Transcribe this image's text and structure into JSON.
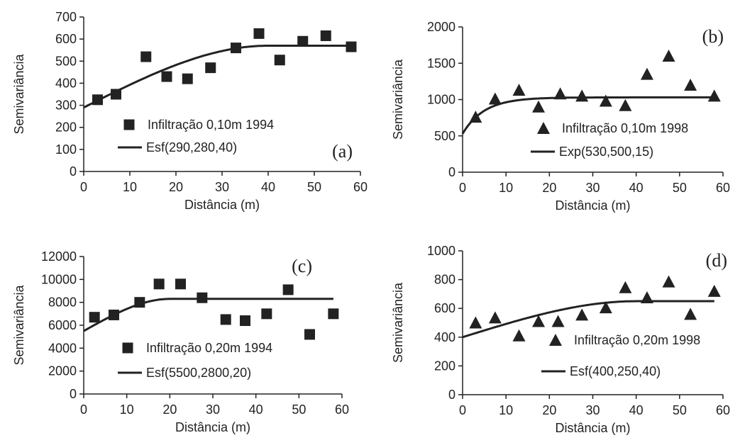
{
  "chart_data": [
    {
      "panel": "(a)",
      "type": "scatter",
      "marker": "square",
      "xlabel": "Distância (m)",
      "ylabel": "Semivariância",
      "xlim": [
        0,
        60
      ],
      "ylim": [
        0,
        700
      ],
      "xticks": [
        0,
        10,
        20,
        30,
        40,
        50,
        60
      ],
      "yticks": [
        0,
        100,
        200,
        300,
        400,
        500,
        600,
        700
      ],
      "points_label": "Infiltração 0,10m 1994",
      "model_label": "Esf(290,280,40)",
      "model": {
        "kind": "spherical",
        "nugget": 290,
        "sill": 280,
        "range": 40,
        "xmax": 58
      },
      "x": [
        3,
        7,
        13.5,
        18,
        22.5,
        27.5,
        33,
        38,
        42.5,
        47.5,
        52.5,
        58
      ],
      "y": [
        325,
        350,
        520,
        430,
        420,
        470,
        560,
        625,
        505,
        590,
        615,
        565
      ]
    },
    {
      "panel": "(b)",
      "type": "scatter",
      "marker": "triangle",
      "xlabel": "Distância (m)",
      "ylabel": "Semivariância",
      "xlim": [
        0,
        60
      ],
      "ylim": [
        0,
        2000
      ],
      "xticks": [
        0,
        10,
        20,
        30,
        40,
        50,
        60
      ],
      "yticks": [
        0,
        500,
        1000,
        1500,
        2000
      ],
      "points_label": "Infiltração 0,10m 1998",
      "model_label": "Exp(530,500,15)",
      "model": {
        "kind": "exponential",
        "nugget": 530,
        "sill": 500,
        "range": 15,
        "xmax": 58
      },
      "x": [
        3,
        7.5,
        13,
        17.5,
        22.5,
        27.5,
        33,
        37.5,
        42.5,
        47.5,
        52.5,
        58
      ],
      "y": [
        760,
        1010,
        1130,
        900,
        1080,
        1050,
        980,
        920,
        1350,
        1600,
        1200,
        1050
      ]
    },
    {
      "panel": "(c)",
      "type": "scatter",
      "marker": "square",
      "xlabel": "Distância (m)",
      "ylabel": "Semivariância",
      "xlim": [
        0,
        60
      ],
      "ylim": [
        0,
        12000
      ],
      "xticks": [
        0,
        10,
        20,
        30,
        40,
        50,
        60
      ],
      "yticks": [
        0,
        2000,
        4000,
        6000,
        8000,
        10000,
        12000
      ],
      "points_label": "Infiltração 0,20m 1994",
      "model_label": "Esf(5500,2800,20)",
      "model": {
        "kind": "spherical",
        "nugget": 5500,
        "sill": 2800,
        "range": 20,
        "xmax": 58
      },
      "x": [
        2.5,
        7,
        13,
        17.5,
        22.5,
        27.5,
        33,
        37.5,
        42.5,
        47.5,
        52.5,
        58
      ],
      "y": [
        6700,
        6900,
        8000,
        9600,
        9600,
        8400,
        6500,
        6400,
        7000,
        9100,
        5200,
        7000
      ]
    },
    {
      "panel": "(d)",
      "type": "scatter",
      "marker": "triangle",
      "xlabel": "Distância (m)",
      "ylabel": "Semivariância",
      "xlim": [
        0,
        60
      ],
      "ylim": [
        0,
        1000
      ],
      "xticks": [
        0,
        10,
        20,
        30,
        40,
        50,
        60
      ],
      "yticks": [
        0,
        200,
        400,
        600,
        800,
        1000
      ],
      "points_label": "Infiltração 0,20m 1998",
      "model_label": "Esf(400,250,40)",
      "model": {
        "kind": "spherical",
        "nugget": 400,
        "sill": 250,
        "range": 40,
        "xmax": 58
      },
      "x": [
        3,
        7.5,
        13,
        17.5,
        22,
        27.5,
        33,
        37.5,
        42.5,
        47.5,
        52.5,
        58
      ],
      "y": [
        500,
        535,
        410,
        510,
        510,
        555,
        605,
        745,
        675,
        785,
        560,
        720
      ]
    }
  ]
}
